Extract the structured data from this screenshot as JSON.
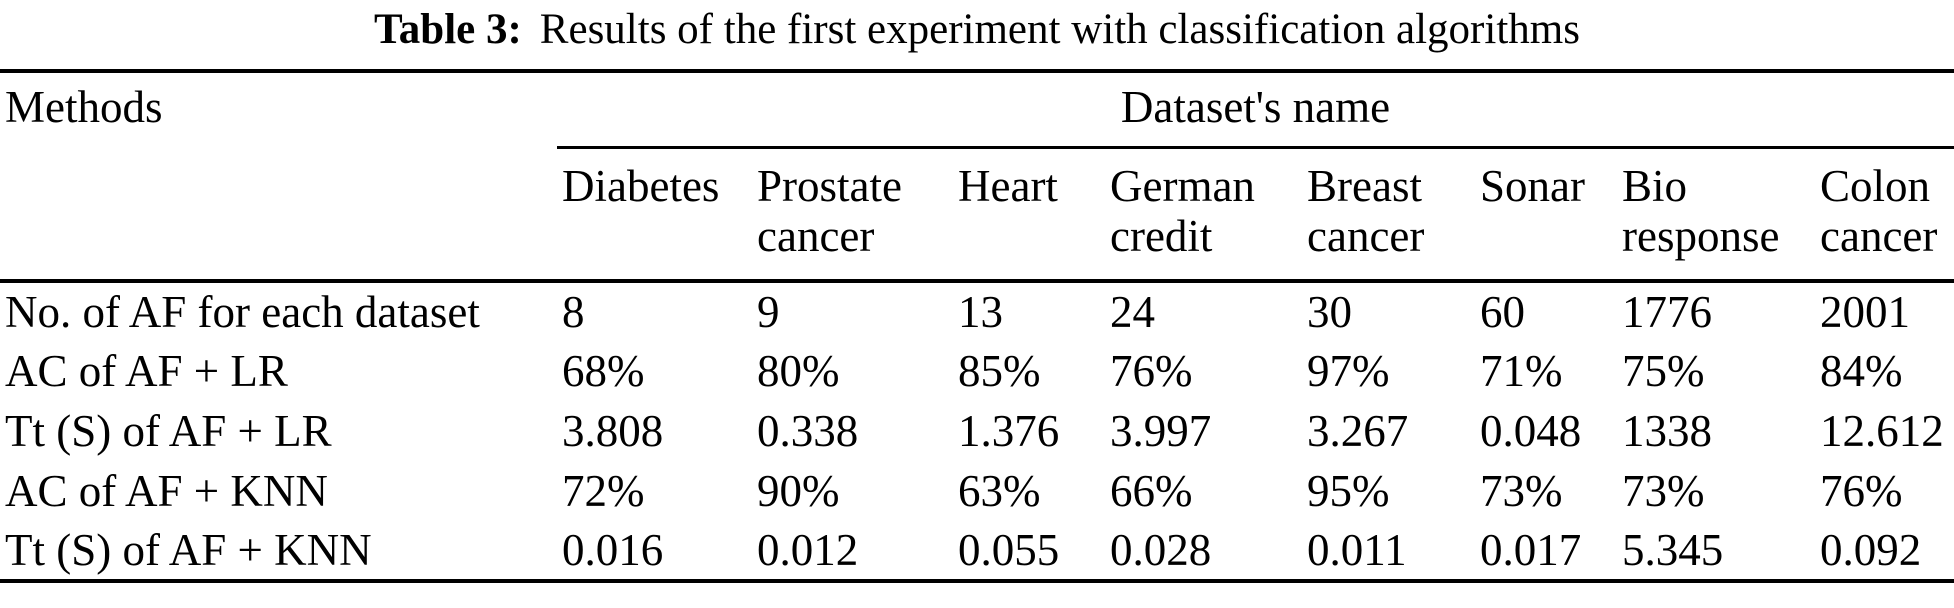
{
  "caption": {
    "label": "Table 3:",
    "text": "Results of the first experiment with classification algorithms"
  },
  "table": {
    "methods_header": "Methods",
    "group_header": "Dataset's name",
    "columns": [
      "Diabetes",
      "Prostate cancer",
      "Heart",
      "German credit",
      "Breast cancer",
      "Sonar",
      "Bio response",
      "Colon cancer"
    ],
    "rows": [
      {
        "method": "No. of AF for each dataset",
        "values": [
          "8",
          "9",
          "13",
          "24",
          "30",
          "60",
          "1776",
          "2001"
        ]
      },
      {
        "method": "AC of AF + LR",
        "values": [
          "68%",
          "80%",
          "85%",
          "76%",
          "97%",
          "71%",
          "75%",
          "84%"
        ]
      },
      {
        "method": "Tt (S) of AF + LR",
        "values": [
          "3.808",
          "0.338",
          "1.376",
          "3.997",
          "3.267",
          "0.048",
          "1338",
          "12.612"
        ]
      },
      {
        "method": "AC of AF + KNN",
        "values": [
          "72%",
          "90%",
          "63%",
          "66%",
          "95%",
          "73%",
          "73%",
          "76%"
        ]
      },
      {
        "method": "Tt (S) of AF + KNN",
        "values": [
          "0.016",
          "0.012",
          "0.055",
          "0.028",
          "0.011",
          "0.017",
          "5.345",
          "0.092"
        ]
      }
    ]
  },
  "colors": {
    "text": "#000000",
    "background": "#ffffff",
    "rule": "#000000"
  }
}
